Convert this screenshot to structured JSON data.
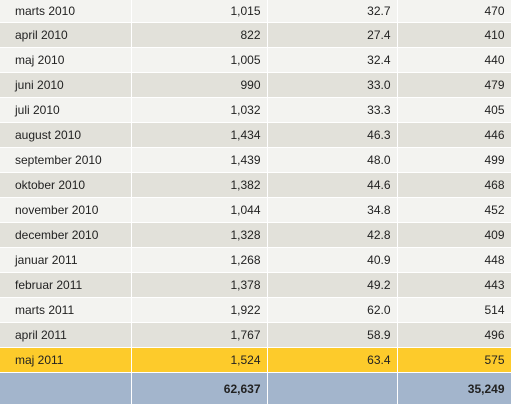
{
  "rows": [
    {
      "month": "marts 2010",
      "col_a": "1,015",
      "col_b": "32.7",
      "col_c": "470",
      "highlight": false
    },
    {
      "month": "april 2010",
      "col_a": "822",
      "col_b": "27.4",
      "col_c": "410",
      "highlight": false
    },
    {
      "month": "maj 2010",
      "col_a": "1,005",
      "col_b": "32.4",
      "col_c": "440",
      "highlight": false
    },
    {
      "month": "juni 2010",
      "col_a": "990",
      "col_b": "33.0",
      "col_c": "479",
      "highlight": false
    },
    {
      "month": "juli 2010",
      "col_a": "1,032",
      "col_b": "33.3",
      "col_c": "405",
      "highlight": false
    },
    {
      "month": "august 2010",
      "col_a": "1,434",
      "col_b": "46.3",
      "col_c": "446",
      "highlight": false
    },
    {
      "month": "september 2010",
      "col_a": "1,439",
      "col_b": "48.0",
      "col_c": "499",
      "highlight": false
    },
    {
      "month": "oktober 2010",
      "col_a": "1,382",
      "col_b": "44.6",
      "col_c": "468",
      "highlight": false
    },
    {
      "month": "november 2010",
      "col_a": "1,044",
      "col_b": "34.8",
      "col_c": "452",
      "highlight": false
    },
    {
      "month": "december 2010",
      "col_a": "1,328",
      "col_b": "42.8",
      "col_c": "409",
      "highlight": false
    },
    {
      "month": "januar 2011",
      "col_a": "1,268",
      "col_b": "40.9",
      "col_c": "448",
      "highlight": false
    },
    {
      "month": "februar 2011",
      "col_a": "1,378",
      "col_b": "49.2",
      "col_c": "443",
      "highlight": false
    },
    {
      "month": "marts 2011",
      "col_a": "1,922",
      "col_b": "62.0",
      "col_c": "514",
      "highlight": false
    },
    {
      "month": "april 2011",
      "col_a": "1,767",
      "col_b": "58.9",
      "col_c": "496",
      "highlight": false
    },
    {
      "month": "maj 2011",
      "col_a": "1,524",
      "col_b": "63.4",
      "col_c": "575",
      "highlight": true
    }
  ],
  "totals": {
    "month": "",
    "col_a": "62,637",
    "col_b": "",
    "col_c": "35,249"
  },
  "colors": {
    "row_light": "#f3f3f0",
    "row_dark": "#e2e1da",
    "highlight": "#fdcb2b",
    "total_row": "#a3b5cc"
  }
}
